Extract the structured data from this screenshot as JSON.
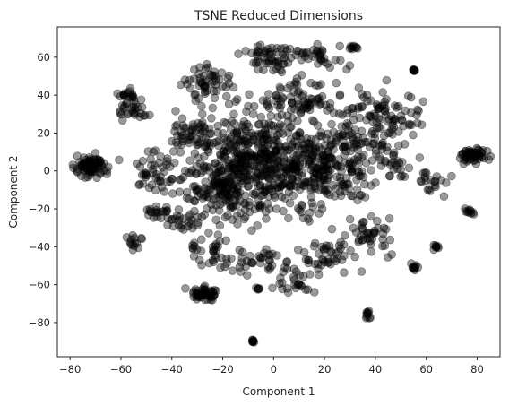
{
  "chart_data": {
    "type": "scatter",
    "title": "TSNE Reduced Dimensions",
    "xlabel": "Component 1",
    "ylabel": "Component 2",
    "xlim": [
      -85,
      89
    ],
    "ylim": [
      -98,
      76
    ],
    "xticks": [
      -80,
      -60,
      -40,
      -20,
      0,
      20,
      40,
      60,
      80
    ],
    "yticks": [
      -80,
      -60,
      -40,
      -20,
      0,
      20,
      40,
      60
    ],
    "xtick_labels": [
      "−80",
      "−60",
      "−40",
      "−20",
      "0",
      "20",
      "40",
      "60",
      "80"
    ],
    "ytick_labels": [
      "−80",
      "−60",
      "−40",
      "−20",
      "0",
      "20",
      "40",
      "60"
    ],
    "grid": false,
    "marker": {
      "color": "#000000",
      "alpha": 0.4,
      "shape": "circle"
    },
    "clusters": [
      {
        "x": -72,
        "y": 2,
        "sx": 3.2,
        "sy": 3.0,
        "n": 90
      },
      {
        "x": 79,
        "y": 8,
        "sx": 2.4,
        "sy": 2.0,
        "n": 60
      },
      {
        "x": -27,
        "y": -65,
        "sx": 2.6,
        "sy": 1.6,
        "n": 50
      },
      {
        "x": 55,
        "y": 53,
        "sx": 0.3,
        "sy": 0.3,
        "n": 8
      },
      {
        "x": -8,
        "y": -90,
        "sx": 0.2,
        "sy": 0.4,
        "n": 8
      },
      {
        "x": 37,
        "y": -76,
        "sx": 0.5,
        "sy": 1.2,
        "n": 10
      },
      {
        "x": 32,
        "y": 65,
        "sx": 1.5,
        "sy": 0.6,
        "n": 10
      },
      {
        "x": 77,
        "y": -22,
        "sx": 1.0,
        "sy": 0.8,
        "n": 10
      },
      {
        "x": 64,
        "y": -40,
        "sx": 0.5,
        "sy": 0.5,
        "n": 8
      },
      {
        "x": 55,
        "y": -51,
        "sx": 1.0,
        "sy": 0.7,
        "n": 10
      },
      {
        "x": -58,
        "y": 40,
        "sx": 1.5,
        "sy": 1.0,
        "n": 14
      },
      {
        "x": -6,
        "y": -62,
        "sx": 0.4,
        "sy": 0.4,
        "n": 5
      },
      {
        "x": -55,
        "y": -38,
        "sx": 1.6,
        "sy": 2.0,
        "n": 14
      },
      {
        "x": -48,
        "y": 0,
        "sx": 4.0,
        "sy": 5.0,
        "n": 45
      },
      {
        "x": -46,
        "y": -21,
        "sx": 2.5,
        "sy": 1.8,
        "n": 18
      },
      {
        "x": -55,
        "y": 32,
        "sx": 3.5,
        "sy": 3.5,
        "n": 30
      },
      {
        "x": -25,
        "y": 45,
        "sx": 4.5,
        "sy": 6.0,
        "n": 55
      },
      {
        "x": 0,
        "y": 60,
        "sx": 6.5,
        "sy": 4.0,
        "n": 60
      },
      {
        "x": 18,
        "y": 60,
        "sx": 4.0,
        "sy": 3.5,
        "n": 25
      },
      {
        "x": 10,
        "y": 38,
        "sx": 9.0,
        "sy": 6.0,
        "n": 80
      },
      {
        "x": 40,
        "y": 32,
        "sx": 6.0,
        "sy": 5.0,
        "n": 55
      },
      {
        "x": 50,
        "y": 25,
        "sx": 4.0,
        "sy": 4.0,
        "n": 25
      },
      {
        "x": 45,
        "y": 5,
        "sx": 4.0,
        "sy": 6.0,
        "n": 35
      },
      {
        "x": 63,
        "y": -6,
        "sx": 3.0,
        "sy": 3.0,
        "n": 20
      },
      {
        "x": 38,
        "y": -35,
        "sx": 5.0,
        "sy": 5.0,
        "n": 40
      },
      {
        "x": 20,
        "y": -45,
        "sx": 6.0,
        "sy": 5.0,
        "n": 45
      },
      {
        "x": 10,
        "y": -58,
        "sx": 4.0,
        "sy": 4.0,
        "n": 25
      },
      {
        "x": -5,
        "y": -48,
        "sx": 5.0,
        "sy": 4.0,
        "n": 35
      },
      {
        "x": -25,
        "y": -42,
        "sx": 4.0,
        "sy": 4.0,
        "n": 30
      },
      {
        "x": -35,
        "y": -25,
        "sx": 4.0,
        "sy": 4.0,
        "n": 25
      },
      {
        "x": -30,
        "y": 20,
        "sx": 6.0,
        "sy": 5.0,
        "n": 55
      },
      {
        "x": -5,
        "y": 5,
        "sx": 13.0,
        "sy": 14.0,
        "n": 520
      },
      {
        "x": 22,
        "y": 0,
        "sx": 8.0,
        "sy": 10.0,
        "n": 140
      },
      {
        "x": -20,
        "y": -10,
        "sx": 7.0,
        "sy": 8.0,
        "n": 110
      },
      {
        "x": 30,
        "y": 15,
        "sx": 6.0,
        "sy": 6.0,
        "n": 60
      }
    ]
  }
}
